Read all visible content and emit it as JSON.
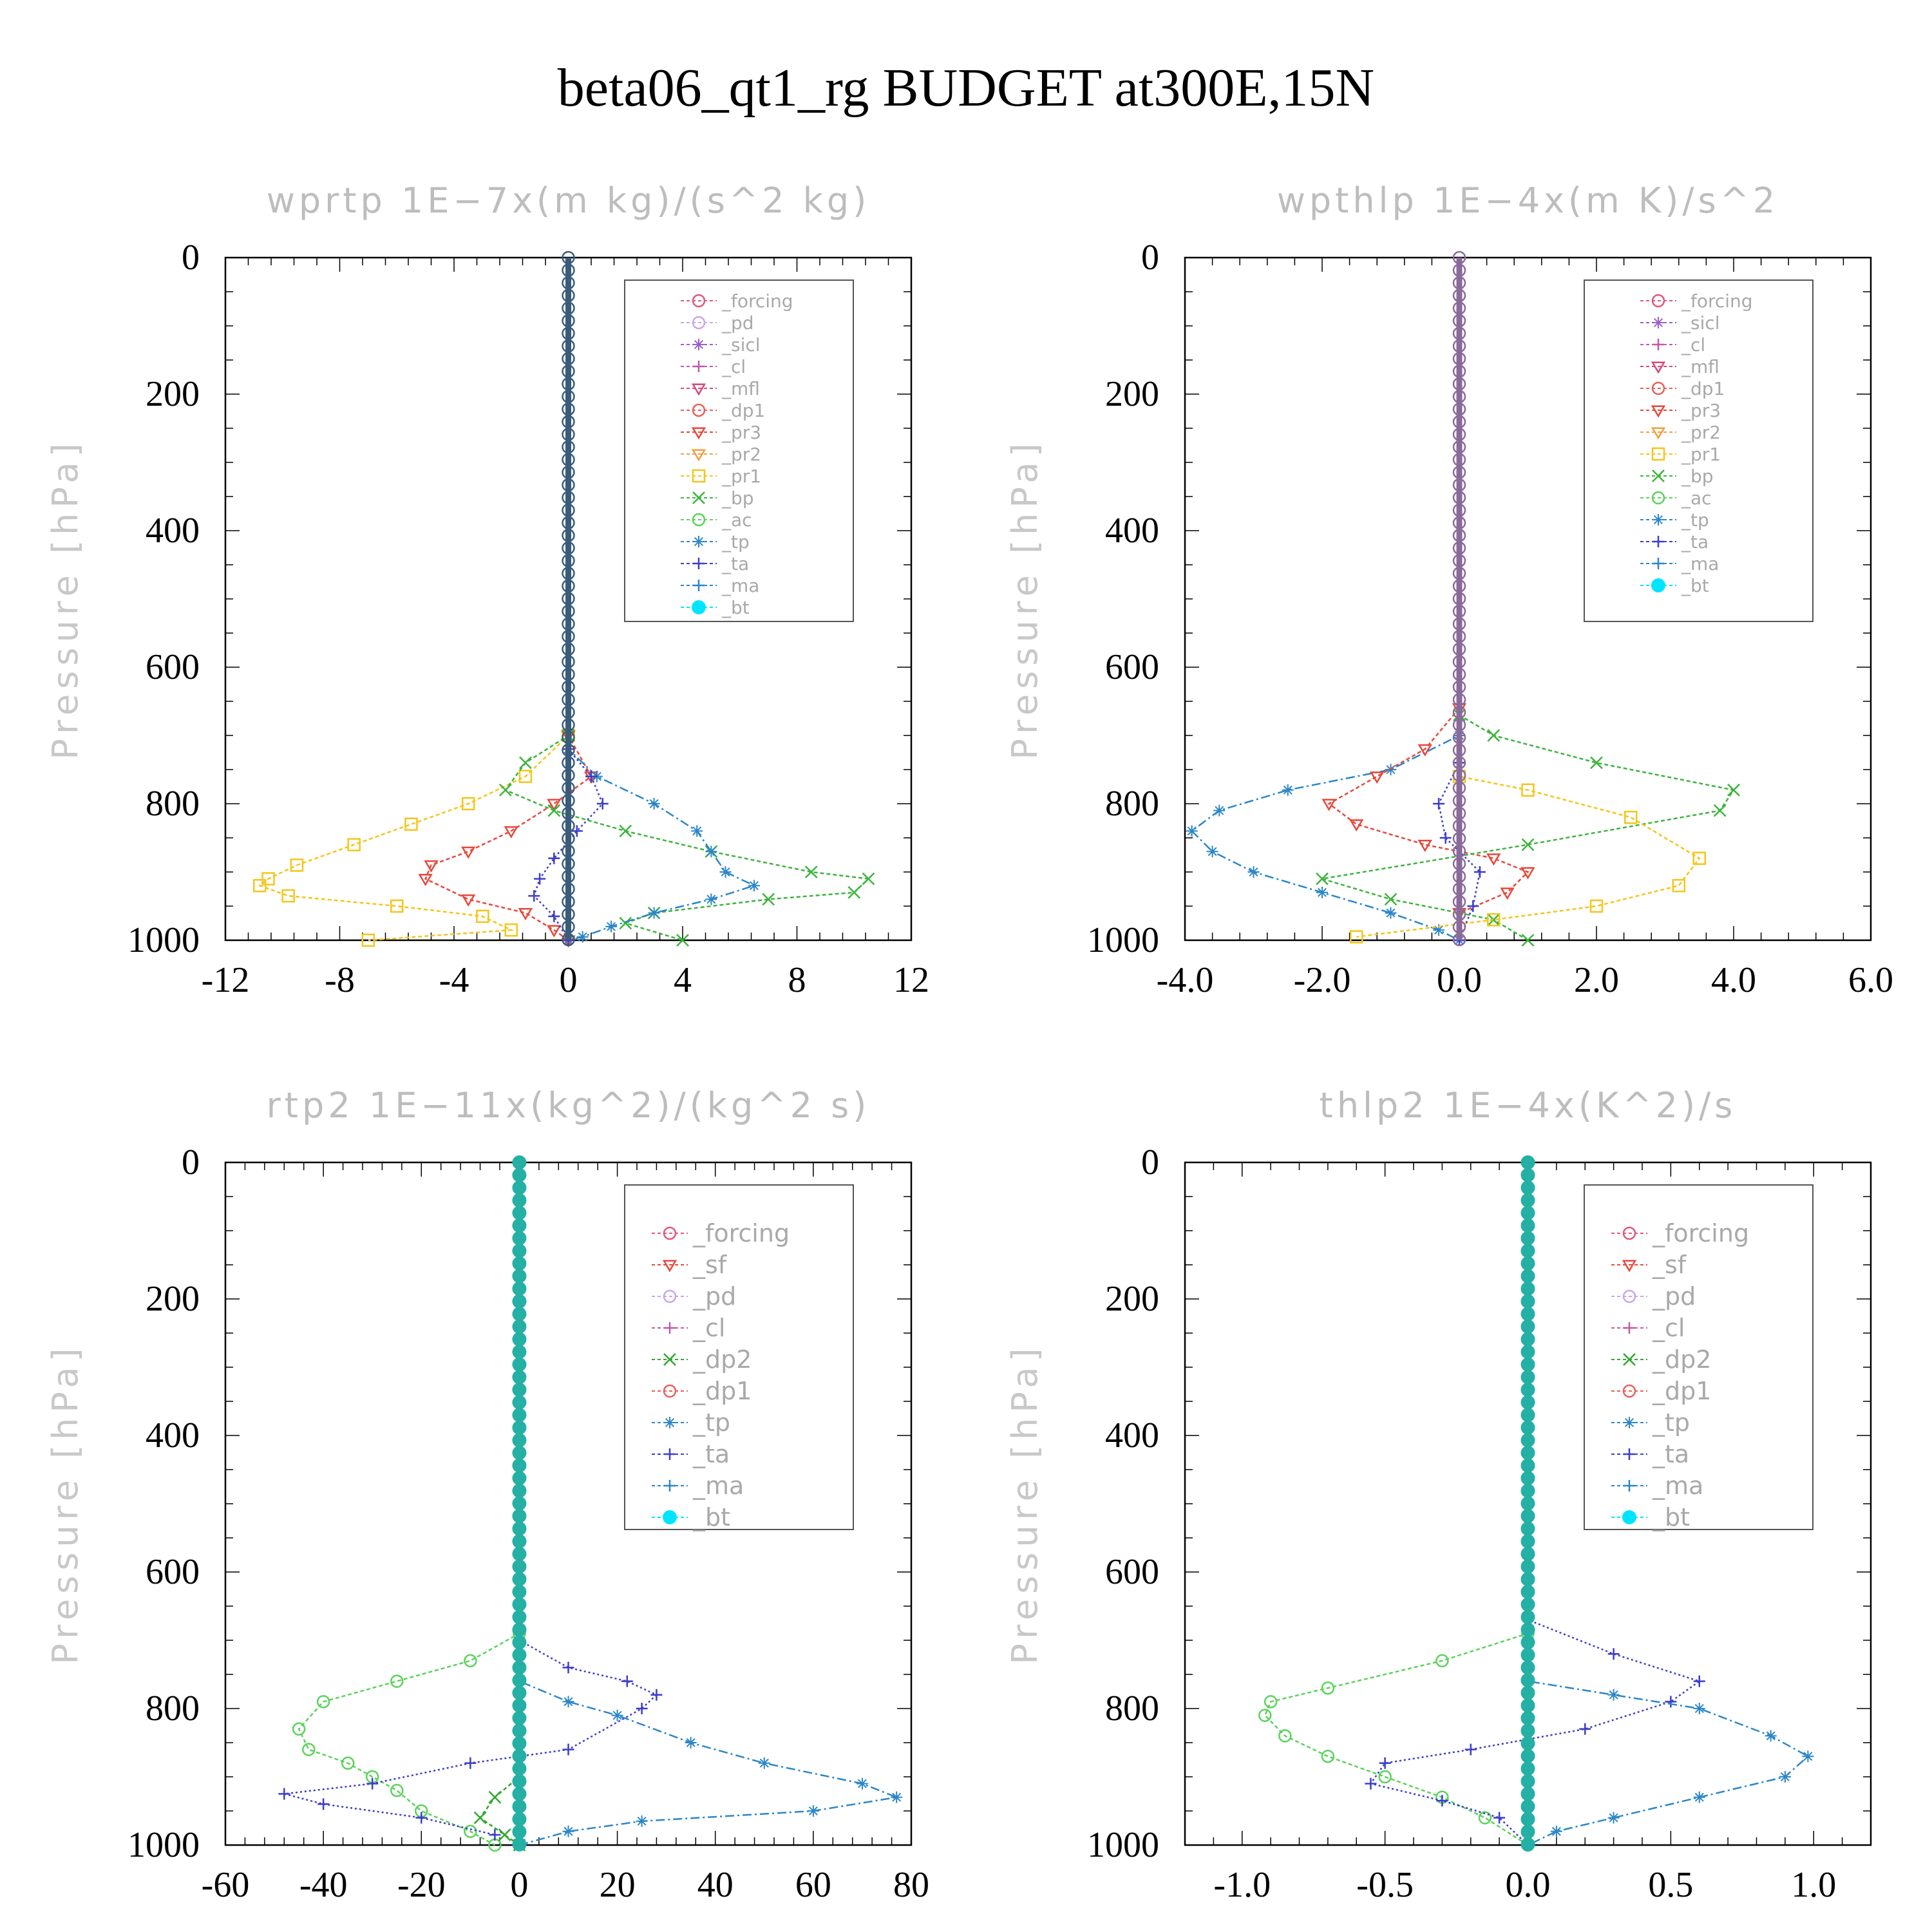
{
  "title": "beta06_qt1_rg  BUDGET at300E,15N",
  "chart_data": [
    {
      "type": "line",
      "title": "wprtp   1E−7x(m kg)/(s^2 kg)",
      "ylabel": "Pressure [hPa]",
      "xlim": [
        -12,
        12
      ],
      "ylim": [
        1000,
        0
      ],
      "xticks": [
        "-12",
        "-8",
        "-4",
        "0",
        "4",
        "8",
        "12"
      ],
      "xtick_values": [
        -12,
        -8,
        -4,
        0,
        4,
        8,
        12
      ],
      "yticks": [
        "0",
        "200",
        "400",
        "600",
        "800",
        "1000"
      ],
      "legend": [
        "_forcing",
        "_pd",
        "_sicl",
        "_cl",
        "_mfl",
        "_dp1",
        "_pr3",
        "_pr2",
        "_pr1",
        "_bp",
        "_ac",
        "_tp",
        "_ta",
        "_ma",
        "_bt"
      ],
      "legend_size": "small",
      "series": [
        {
          "name": "_pr1",
          "color": "#f5c518",
          "marker": "square",
          "dash": "6,4",
          "x": [
            0,
            0,
            -1.5,
            -3.5,
            -5.5,
            -7.5,
            -9.5,
            -10.5,
            -10.8,
            -9.8,
            -6,
            -3,
            -2,
            -7
          ],
          "y": [
            0,
            700,
            760,
            800,
            830,
            860,
            890,
            910,
            920,
            935,
            950,
            965,
            985,
            1000
          ]
        },
        {
          "name": "_pr3",
          "color": "#e8473a",
          "marker": "tri-down",
          "dash": "6,4",
          "x": [
            0,
            0,
            0.8,
            -0.5,
            -2,
            -3.5,
            -4.8,
            -5,
            -3.5,
            -1.5,
            -0.5,
            0
          ],
          "y": [
            0,
            700,
            760,
            800,
            840,
            870,
            890,
            910,
            940,
            960,
            985,
            1000
          ]
        },
        {
          "name": "_bp",
          "color": "#3cb43c",
          "marker": "x",
          "dash": "6,4",
          "x": [
            0,
            0,
            -1.5,
            -2.2,
            -0.5,
            2,
            5,
            8.5,
            10.5,
            10,
            7,
            3,
            2,
            4
          ],
          "y": [
            0,
            700,
            740,
            780,
            810,
            840,
            870,
            900,
            910,
            930,
            940,
            960,
            975,
            1000
          ]
        },
        {
          "name": "_tp",
          "color": "#2b86c8",
          "marker": "star",
          "dash": "14,5,3,5",
          "x": [
            0,
            0,
            1,
            3,
            4.5,
            5,
            5.5,
            6.5,
            5,
            3,
            1.5,
            0.5,
            0
          ],
          "y": [
            0,
            720,
            760,
            800,
            840,
            870,
            900,
            920,
            940,
            960,
            980,
            995,
            1000
          ]
        },
        {
          "name": "_ta",
          "color": "#3c3ccc",
          "marker": "plus",
          "dash": "3,4",
          "x": [
            0,
            0,
            0.8,
            1.2,
            0.3,
            -0.5,
            -1,
            -1.2,
            -0.5,
            0
          ],
          "y": [
            0,
            720,
            760,
            800,
            840,
            880,
            910,
            935,
            965,
            1000
          ]
        },
        {
          "name": "_forcing",
          "color": "#3a5c7a",
          "marker": "circle",
          "dash": "",
          "width": 9,
          "x": [
            0,
            0
          ],
          "y": [
            0,
            1000
          ]
        }
      ]
    },
    {
      "type": "line",
      "title": "wpthlp   1E−4x(m K)/s^2",
      "ylabel": "Pressure [hPa]",
      "xlim": [
        -4,
        6
      ],
      "ylim": [
        1000,
        0
      ],
      "xticks": [
        "-4.0",
        "-2.0",
        "0.0",
        "2.0",
        "4.0",
        "6.0"
      ],
      "xtick_values": [
        -4,
        -2,
        0,
        2,
        4,
        6
      ],
      "yticks": [
        "0",
        "200",
        "400",
        "600",
        "800",
        "1000"
      ],
      "legend": [
        "_forcing",
        "_sicl",
        "_cl",
        "_mfl",
        "_dp1",
        "_pr3",
        "_pr2",
        "_pr1",
        "_bp",
        "_ac",
        "_tp",
        "_ta",
        "_ma",
        "_bt"
      ],
      "legend_size": "small",
      "series": [
        {
          "name": "_tp",
          "color": "#2b86c8",
          "marker": "star",
          "dash": "14,5,3,5",
          "x": [
            0,
            0,
            -1,
            -2.5,
            -3.5,
            -3.9,
            -3.6,
            -3,
            -2,
            -1,
            -0.3,
            0
          ],
          "y": [
            0,
            700,
            750,
            780,
            810,
            840,
            870,
            900,
            930,
            960,
            985,
            1000
          ]
        },
        {
          "name": "_pr3",
          "color": "#e8473a",
          "marker": "tri-down",
          "dash": "6,4",
          "x": [
            0,
            0,
            -0.5,
            -1.2,
            -1.9,
            -1.5,
            -0.5,
            0.5,
            1,
            0.7,
            0
          ],
          "y": [
            0,
            660,
            720,
            760,
            800,
            830,
            860,
            880,
            900,
            930,
            960
          ]
        },
        {
          "name": "_bp",
          "color": "#3cb43c",
          "marker": "x",
          "dash": "6,4",
          "x": [
            0,
            0,
            0.5,
            2,
            4,
            3.8,
            1,
            -2,
            -1,
            0.5,
            1
          ],
          "y": [
            0,
            670,
            700,
            740,
            780,
            810,
            860,
            910,
            940,
            970,
            1000
          ]
        },
        {
          "name": "_pr1",
          "color": "#f5c518",
          "marker": "square",
          "dash": "6,4",
          "x": [
            0,
            0,
            1,
            2.5,
            3.5,
            3.2,
            2,
            0.5,
            -1.5
          ],
          "y": [
            0,
            760,
            780,
            820,
            880,
            920,
            950,
            970,
            995
          ]
        },
        {
          "name": "_ta",
          "color": "#3c3ccc",
          "marker": "plus",
          "dash": "3,4",
          "x": [
            0,
            0,
            -0.3,
            -0.2,
            0.3,
            0.2,
            0
          ],
          "y": [
            0,
            740,
            800,
            850,
            900,
            950,
            1000
          ]
        },
        {
          "name": "_forcing",
          "color": "#8a6a9a",
          "marker": "circle",
          "dash": "",
          "width": 9,
          "x": [
            0,
            0
          ],
          "y": [
            0,
            1000
          ]
        }
      ]
    },
    {
      "type": "line",
      "title": "rtp2   1E−11x(kg^2)/(kg^2 s)",
      "ylabel": "Pressure [hPa]",
      "xlim": [
        -60,
        80
      ],
      "ylim": [
        1000,
        0
      ],
      "xticks": [
        "-60",
        "-40",
        "-20",
        "0",
        "20",
        "40",
        "60",
        "80"
      ],
      "xtick_values": [
        -60,
        -40,
        -20,
        0,
        20,
        40,
        60,
        80
      ],
      "yticks": [
        "0",
        "200",
        "400",
        "600",
        "800",
        "1000"
      ],
      "legend": [
        "_forcing",
        "_sf",
        "_pd",
        "_cl",
        "_dp2",
        "_dp1",
        "_tp",
        "_ta",
        "_ma",
        "_bt"
      ],
      "legend_size": "big",
      "series": [
        {
          "name": "_dp1",
          "color": "#5ad35a",
          "marker": "circle",
          "dash": "6,4",
          "x": [
            0,
            0,
            -10,
            -25,
            -40,
            -45,
            -43,
            -35,
            -30,
            -25,
            -20,
            -10,
            -5
          ],
          "y": [
            0,
            690,
            730,
            760,
            790,
            830,
            860,
            880,
            900,
            920,
            950,
            980,
            1000
          ]
        },
        {
          "name": "_ta",
          "color": "#3c3ccc",
          "marker": "plus",
          "dash": "3,4",
          "x": [
            0,
            0,
            10,
            22,
            28,
            25,
            10,
            -10,
            -30,
            -48,
            -40,
            -20,
            -5
          ],
          "y": [
            0,
            700,
            740,
            760,
            780,
            800,
            860,
            880,
            910,
            925,
            940,
            960,
            985
          ]
        },
        {
          "name": "_tp",
          "color": "#2b86c8",
          "marker": "star",
          "dash": "14,5,3,5",
          "x": [
            0,
            0,
            10,
            20,
            35,
            50,
            70,
            77,
            60,
            25,
            10,
            0
          ],
          "y": [
            0,
            760,
            790,
            810,
            850,
            880,
            910,
            930,
            950,
            965,
            980,
            1000
          ]
        },
        {
          "name": "_dp2",
          "color": "#2fa82f",
          "marker": "x",
          "dash": "6,4",
          "x": [
            0,
            0,
            -5,
            -8,
            -3,
            0
          ],
          "y": [
            0,
            900,
            930,
            960,
            985,
            1000
          ]
        },
        {
          "name": "_forcing",
          "color": "#d2732e",
          "marker": "circle",
          "dash": "",
          "width": 11,
          "x": [
            0,
            0
          ],
          "y": [
            0,
            1000
          ]
        },
        {
          "name": "_bt",
          "color": "#24b0a4",
          "marker": "dot",
          "dash": "",
          "width": 5,
          "x": [
            0,
            0
          ],
          "y": [
            0,
            1000
          ]
        }
      ]
    },
    {
      "type": "line",
      "title": "thlp2   1E−4x(K^2)/s",
      "ylabel": "Pressure [hPa]",
      "xlim": [
        -1.2,
        1.2
      ],
      "ylim": [
        1000,
        0
      ],
      "xticks": [
        "-1.0",
        "-0.5",
        "0.0",
        "0.5",
        "1.0"
      ],
      "xtick_values": [
        -1,
        -0.5,
        0,
        0.5,
        1
      ],
      "yticks": [
        "0",
        "200",
        "400",
        "600",
        "800",
        "1000"
      ],
      "legend": [
        "_forcing",
        "_sf",
        "_pd",
        "_cl",
        "_dp2",
        "_dp1",
        "_tp",
        "_ta",
        "_ma",
        "_bt"
      ],
      "legend_size": "big",
      "series": [
        {
          "name": "_dp1",
          "color": "#5ad35a",
          "marker": "circle",
          "dash": "6,4",
          "x": [
            0,
            0,
            -0.3,
            -0.7,
            -0.9,
            -0.92,
            -0.85,
            -0.7,
            -0.5,
            -0.3,
            -0.15,
            0
          ],
          "y": [
            0,
            690,
            730,
            770,
            790,
            810,
            840,
            870,
            900,
            930,
            960,
            1000
          ]
        },
        {
          "name": "_ta",
          "color": "#3c3ccc",
          "marker": "plus",
          "dash": "3,4",
          "x": [
            0,
            0,
            0.3,
            0.6,
            0.5,
            0.2,
            -0.2,
            -0.5,
            -0.55,
            -0.3,
            -0.1,
            0
          ],
          "y": [
            0,
            670,
            720,
            760,
            790,
            830,
            860,
            880,
            910,
            935,
            960,
            1000
          ]
        },
        {
          "name": "_tp",
          "color": "#2b86c8",
          "marker": "star",
          "dash": "14,5,3,5",
          "x": [
            0,
            0,
            0.3,
            0.6,
            0.85,
            0.98,
            0.9,
            0.6,
            0.3,
            0.1,
            0
          ],
          "y": [
            0,
            760,
            780,
            800,
            840,
            870,
            900,
            930,
            960,
            980,
            1000
          ]
        },
        {
          "name": "_forcing",
          "color": "#d2732e",
          "marker": "circle",
          "dash": "",
          "width": 11,
          "x": [
            0,
            0
          ],
          "y": [
            0,
            1000
          ]
        },
        {
          "name": "_bt",
          "color": "#24b0a4",
          "marker": "dot",
          "dash": "",
          "width": 5,
          "x": [
            0,
            0
          ],
          "y": [
            0,
            1000
          ]
        }
      ]
    }
  ],
  "legend_colors": {
    "_forcing": "#e0577a",
    "_pd": "#c9a6e6",
    "_sicl": "#9a5fc9",
    "_cl": "#c05aa8",
    "_mfl": "#d64a7a",
    "_dp1": "#e8605a",
    "_pr3": "#e8473a",
    "_pr2": "#f0a040",
    "_pr1": "#f5c518",
    "_bp": "#3cb43c",
    "_ac": "#5ad35a",
    "_tp": "#2b86c8",
    "_ta": "#3c3ccc",
    "_ma": "#2b86c8",
    "_bt": "#00e5ff",
    "_sf": "#e8473a",
    "_dp2": "#2fa82f"
  }
}
